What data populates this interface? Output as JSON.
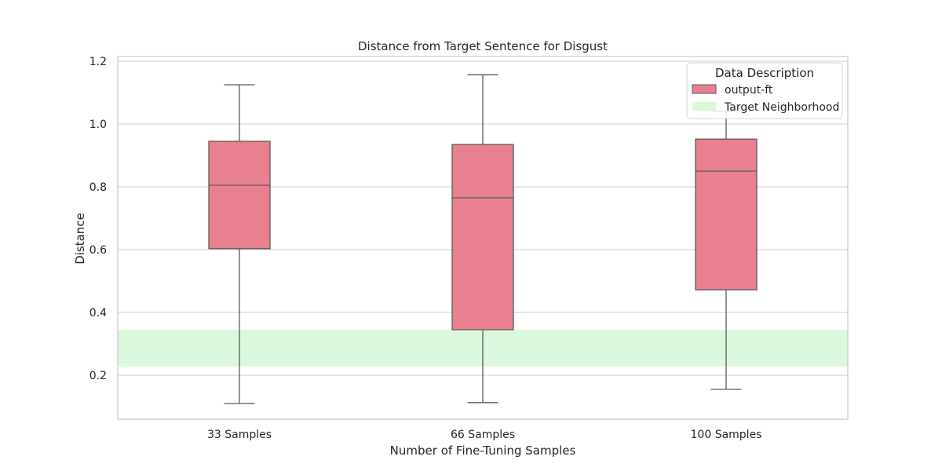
{
  "chart_data": {
    "type": "box",
    "title": "Distance from Target Sentence for Disgust",
    "xlabel": "Number of Fine-Tuning Samples",
    "ylabel": "Distance",
    "ylim": [
      0.06,
      1.215
    ],
    "yticks": [
      0.2,
      0.4,
      0.6,
      0.8,
      1.0,
      1.2
    ],
    "ytick_labels": [
      "0.2",
      "0.4",
      "0.6",
      "0.8",
      "1.0",
      "1.2"
    ],
    "grid": true,
    "categories": [
      "33 Samples",
      "66 Samples",
      "100 Samples"
    ],
    "series": [
      {
        "name": "output-ft",
        "color": "#e8808f",
        "boxes": [
          {
            "category": "33 Samples",
            "whisker_low": 0.11,
            "q1": 0.603,
            "median": 0.805,
            "q3": 0.945,
            "whisker_high": 1.125
          },
          {
            "category": "66 Samples",
            "whisker_low": 0.113,
            "q1": 0.345,
            "median": 0.765,
            "q3": 0.935,
            "whisker_high": 1.157
          },
          {
            "category": "100 Samples",
            "whisker_low": 0.155,
            "q1": 0.472,
            "median": 0.85,
            "q3": 0.952,
            "whisker_high": 1.04
          }
        ]
      }
    ],
    "target_neighborhood": {
      "name": "Target Neighborhood",
      "y_low": 0.228,
      "y_high": 0.345,
      "color": "#dbf7dc"
    },
    "legend": {
      "title": "Data Description",
      "position": "top-right",
      "entries": [
        {
          "label": "output-ft",
          "color": "#e8808f"
        },
        {
          "label": "Target Neighborhood",
          "color": "#dbf7dc"
        }
      ]
    }
  }
}
